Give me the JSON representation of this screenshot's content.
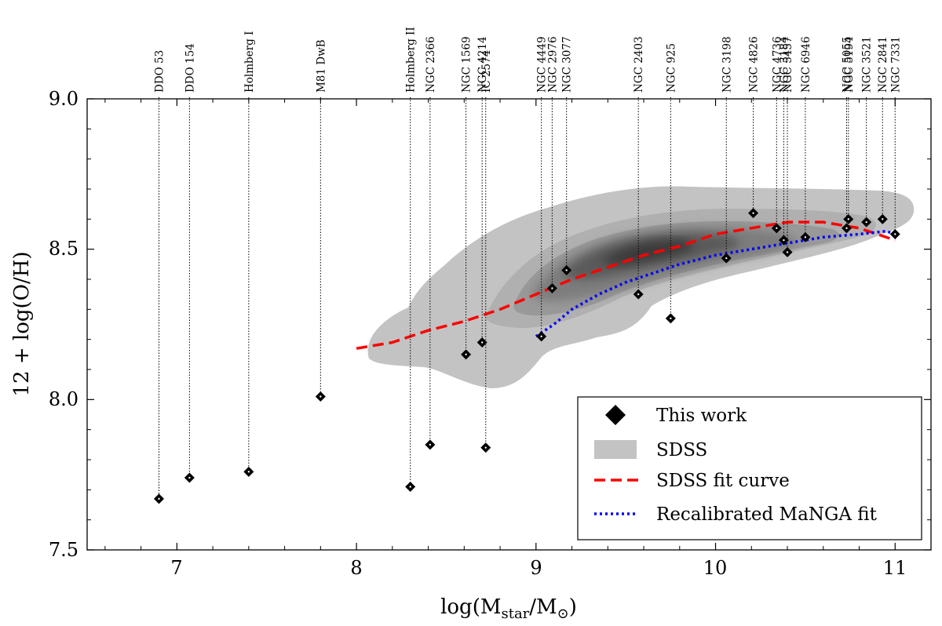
{
  "chart_data": {
    "type": "scatter",
    "title": "",
    "xlabel": "log(M_star/M_⊙)",
    "ylabel": "12 + log(O/H)",
    "xlim": [
      6.5,
      11.2
    ],
    "ylim": [
      7.5,
      9.0
    ],
    "x_ticks": [
      7,
      8,
      9,
      10,
      11
    ],
    "y_ticks": [
      7.5,
      8.0,
      8.5,
      9.0
    ],
    "x_tick_labels": [
      "7",
      "8",
      "9",
      "10",
      "11"
    ],
    "y_tick_labels": [
      "7.5",
      "8.0",
      "8.5",
      "9.0"
    ],
    "legend_position": "lower-right",
    "legend": [
      {
        "key": "this_work",
        "label": "This work",
        "style": "diamond-marker"
      },
      {
        "key": "sdss",
        "label": "SDSS",
        "style": "grey-fill"
      },
      {
        "key": "sdss_fit",
        "label": "SDSS fit curve",
        "style": "red-dashed",
        "color": "#ff0000"
      },
      {
        "key": "manga_fit",
        "label": "Recalibrated MaNGA fit",
        "style": "blue-dotted",
        "color": "#0000ff"
      }
    ],
    "series": [
      {
        "name": "This work",
        "type": "scatter",
        "points": [
          {
            "x": 6.9,
            "y": 7.67
          },
          {
            "x": 7.07,
            "y": 7.74
          },
          {
            "x": 7.4,
            "y": 7.76
          },
          {
            "x": 7.8,
            "y": 8.01
          },
          {
            "x": 8.3,
            "y": 7.71
          },
          {
            "x": 8.41,
            "y": 7.85
          },
          {
            "x": 8.61,
            "y": 8.15
          },
          {
            "x": 8.7,
            "y": 8.19
          },
          {
            "x": 8.72,
            "y": 7.84
          },
          {
            "x": 9.03,
            "y": 8.21
          },
          {
            "x": 9.09,
            "y": 8.37
          },
          {
            "x": 9.17,
            "y": 8.43
          },
          {
            "x": 9.57,
            "y": 8.35
          },
          {
            "x": 9.75,
            "y": 8.27
          },
          {
            "x": 10.06,
            "y": 8.47
          },
          {
            "x": 10.21,
            "y": 8.62
          },
          {
            "x": 10.34,
            "y": 8.57
          },
          {
            "x": 10.38,
            "y": 8.53
          },
          {
            "x": 10.4,
            "y": 8.49
          },
          {
            "x": 10.5,
            "y": 8.54
          },
          {
            "x": 10.73,
            "y": 8.57
          },
          {
            "x": 10.74,
            "y": 8.6
          },
          {
            "x": 10.84,
            "y": 8.59
          },
          {
            "x": 10.93,
            "y": 8.6
          },
          {
            "x": 11.0,
            "y": 8.55
          }
        ]
      },
      {
        "name": "SDSS fit curve",
        "type": "line",
        "color": "#ff0000",
        "x": [
          8.0,
          8.2,
          8.4,
          8.6,
          8.8,
          9.0,
          9.2,
          9.4,
          9.6,
          9.8,
          10.0,
          10.2,
          10.4,
          10.6,
          10.8,
          11.0
        ],
        "y": [
          8.17,
          8.19,
          8.23,
          8.26,
          8.3,
          8.35,
          8.4,
          8.44,
          8.48,
          8.51,
          8.55,
          8.57,
          8.59,
          8.59,
          8.57,
          8.53
        ]
      },
      {
        "name": "Recalibrated MaNGA fit",
        "type": "line",
        "color": "#0000ff",
        "x": [
          9.0,
          9.1,
          9.2,
          9.35,
          9.5,
          9.65,
          9.8,
          10.0,
          10.2,
          10.4,
          10.6,
          10.8,
          10.95,
          11.0
        ],
        "y": [
          8.21,
          8.25,
          8.3,
          8.35,
          8.39,
          8.42,
          8.45,
          8.48,
          8.5,
          8.52,
          8.54,
          8.55,
          8.56,
          8.55
        ]
      }
    ],
    "galaxy_labels": [
      {
        "text": "DDO 53",
        "x": 6.9,
        "y": 7.67
      },
      {
        "text": "DDO 154",
        "x": 7.07,
        "y": 7.74
      },
      {
        "text": "Holmberg I",
        "x": 7.4,
        "y": 7.76
      },
      {
        "text": "M81 DwB",
        "x": 7.8,
        "y": 8.01
      },
      {
        "text": "Holmberg II",
        "x": 8.3,
        "y": 7.71
      },
      {
        "text": "NGC 2366",
        "x": 8.41,
        "y": 7.85
      },
      {
        "text": "NGC 1569",
        "x": 8.61,
        "y": 8.15
      },
      {
        "text": "NGC 4214",
        "x": 8.7,
        "y": 8.19
      },
      {
        "text": "IC 2574",
        "x": 8.72,
        "y": 7.84
      },
      {
        "text": "NGC 4449",
        "x": 9.03,
        "y": 8.21
      },
      {
        "text": "NGC 2976",
        "x": 9.09,
        "y": 8.37
      },
      {
        "text": "NGC 3077",
        "x": 9.17,
        "y": 8.43
      },
      {
        "text": "NGC 2403",
        "x": 9.57,
        "y": 8.35
      },
      {
        "text": "NGC 925",
        "x": 9.75,
        "y": 8.27
      },
      {
        "text": "NGC 3198",
        "x": 10.06,
        "y": 8.47
      },
      {
        "text": "NGC 4826",
        "x": 10.21,
        "y": 8.62
      },
      {
        "text": "NGC 4736",
        "x": 10.34,
        "y": 8.57
      },
      {
        "text": "NGC 3184",
        "x": 10.38,
        "y": 8.53
      },
      {
        "text": "NGC 5457",
        "x": 10.4,
        "y": 8.49
      },
      {
        "text": "NGC 6946",
        "x": 10.5,
        "y": 8.54
      },
      {
        "text": "NGC 5055",
        "x": 10.73,
        "y": 8.57
      },
      {
        "text": "NGC 5194",
        "x": 10.74,
        "y": 8.6
      },
      {
        "text": "NGC 3521",
        "x": 10.84,
        "y": 8.59
      },
      {
        "text": "NGC 2841",
        "x": 10.93,
        "y": 8.6
      },
      {
        "text": "NGC 7331",
        "x": 11.0,
        "y": 8.55
      }
    ],
    "sdss_density": {
      "description": "grey filled density contours of the SDSS sample",
      "outer_color": "#c0c0c0",
      "core_color": "#404040",
      "peak": {
        "x": 9.7,
        "y": 8.48
      }
    }
  }
}
